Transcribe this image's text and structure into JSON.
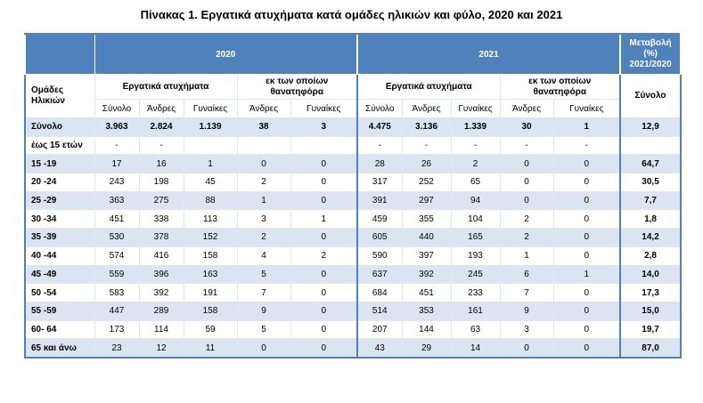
{
  "title": "Πίνακας 1. Εργατικά ατυχήματα κατά ομάδες ηλικιών και φύλο, 2020 και 2021",
  "header": {
    "year1": "2020",
    "year2": "2021",
    "change": [
      "Μεταβολή",
      "(%)",
      "2021/2020"
    ]
  },
  "subheader": {
    "age": [
      "Ομάδες",
      "Ηλικιών"
    ],
    "accidents1": "Εργατικά ατυχήματα",
    "fatal1": [
      "εκ των οποίων",
      "θανατηφόρα"
    ],
    "accidents2": "Εργατικά ατυχήματα",
    "fatal2": [
      "εκ των οποίων",
      "θανατηφόρα"
    ],
    "change_total": "Σύνολο",
    "cols": [
      "Σύνολο",
      "Άνδρες",
      "Γυναίκες",
      "Άνδρες",
      "Γυναίκες",
      "Σύνολο",
      "Άνδρες",
      "Γυναίκες",
      "Άνδρες",
      "Γυναίκες"
    ]
  },
  "table": {
    "rows": [
      [
        "Σύνολο",
        "3.963",
        "2.824",
        "1.139",
        "38",
        "3",
        "4.475",
        "3.136",
        "1.339",
        "30",
        "1",
        "12,9"
      ],
      [
        "έως 15 ετών",
        "-",
        "-",
        null,
        null,
        null,
        "-",
        "-",
        "-",
        "-",
        "-",
        null
      ],
      [
        "15 -19",
        "17",
        "16",
        "1",
        "0",
        "0",
        "28",
        "26",
        "2",
        "0",
        "0",
        "64,7"
      ],
      [
        "20 -24",
        "243",
        "198",
        "45",
        "2",
        "0",
        "317",
        "252",
        "65",
        "0",
        "0",
        "30,5"
      ],
      [
        "25 -29",
        "363",
        "275",
        "88",
        "1",
        "0",
        "391",
        "297",
        "94",
        "0",
        "0",
        "7,7"
      ],
      [
        "30 -34",
        "451",
        "338",
        "113",
        "3",
        "1",
        "459",
        "355",
        "104",
        "2",
        "0",
        "1,8"
      ],
      [
        "35 -39",
        "530",
        "378",
        "152",
        "2",
        "0",
        "605",
        "440",
        "165",
        "2",
        "0",
        "14,2"
      ],
      [
        "40 -44",
        "574",
        "416",
        "158",
        "4",
        "2",
        "590",
        "397",
        "193",
        "1",
        "0",
        "2,8"
      ],
      [
        "45 -49",
        "559",
        "396",
        "163",
        "5",
        "0",
        "637",
        "392",
        "245",
        "6",
        "1",
        "14,0"
      ],
      [
        "50 -54",
        "583",
        "392",
        "191",
        "7",
        "0",
        "684",
        "451",
        "233",
        "7",
        "0",
        "17,3"
      ],
      [
        "55 -59",
        "447",
        "289",
        "158",
        "9",
        "0",
        "514",
        "353",
        "161",
        "9",
        "0",
        "15,0"
      ],
      [
        "60- 64",
        "173",
        "114",
        "59",
        "5",
        "0",
        "207",
        "144",
        "63",
        "3",
        "0",
        "19,7"
      ],
      [
        "65 και άνω",
        "23",
        "12",
        "11",
        "0",
        "0",
        "43",
        "29",
        "14",
        "0",
        "0",
        "87,0"
      ]
    ]
  }
}
